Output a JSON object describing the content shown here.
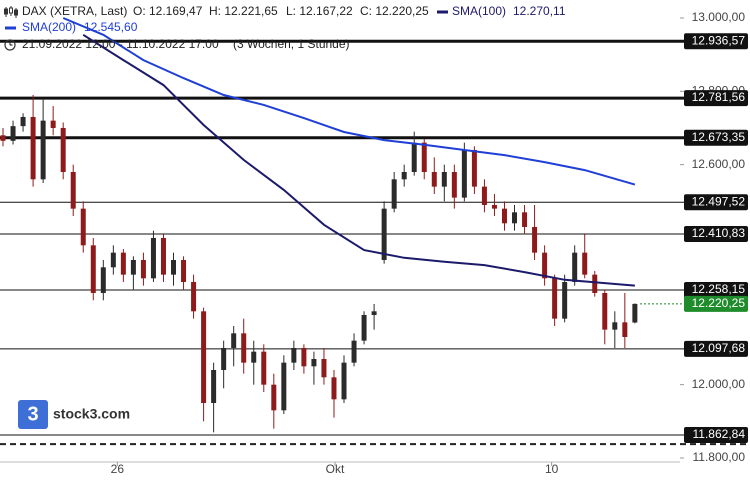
{
  "chart_data": {
    "type": "candlestick",
    "title": "DAX (XETRA, Last)",
    "ohlc_labels": [
      "O: 12.169,47",
      "H: 12.221,65",
      "L: 12.167,22",
      "C: 12.220,25"
    ],
    "period": "21.09.2022 12:00 - 11.10.2022 17:00",
    "interval": "(3 Wochen, 1 Stunde)",
    "open": [
      12680,
      12665,
      12705,
      12730,
      12560,
      12720,
      12700,
      12580,
      12480,
      12380,
      12250,
      12320,
      12360,
      12300,
      12340,
      12290,
      12400,
      12300,
      12340,
      12280,
      12200,
      11950,
      12040,
      12100,
      12140,
      12060,
      12090,
      12000,
      11930,
      12060,
      12100,
      12050,
      12070,
      12020,
      11960,
      12060,
      12120,
      12190,
      12340,
      12480,
      12560,
      12580,
      12660,
      12580,
      12540,
      12580,
      12510,
      12640,
      12540,
      12490,
      12480,
      12440,
      12470,
      12430,
      12360,
      12290,
      12180,
      12280,
      12360,
      12300,
      12250,
      12150,
      12170,
      12169.47
    ],
    "high": [
      12700,
      12720,
      12740,
      12790,
      12780,
      12760,
      12715,
      12600,
      12500,
      12400,
      12340,
      12380,
      12370,
      12350,
      12360,
      12420,
      12410,
      12360,
      12350,
      12300,
      12210,
      12060,
      12120,
      12160,
      12180,
      12120,
      12110,
      12030,
      12080,
      12120,
      12110,
      12090,
      12100,
      12040,
      12080,
      12140,
      12200,
      12220,
      12500,
      12580,
      12600,
      12690,
      12670,
      12620,
      12600,
      12600,
      12660,
      12650,
      12560,
      12520,
      12500,
      12490,
      12490,
      12490,
      12380,
      12300,
      12300,
      12380,
      12410,
      12310,
      12260,
      12200,
      12250,
      12221.65
    ],
    "low": [
      12650,
      12655,
      12690,
      12540,
      12550,
      12680,
      12560,
      12460,
      12360,
      12230,
      12230,
      12300,
      12280,
      12260,
      12270,
      12280,
      12280,
      12270,
      12260,
      12180,
      11900,
      11870,
      11990,
      12050,
      12030,
      12000,
      11980,
      11880,
      11920,
      12040,
      12030,
      12000,
      12000,
      11910,
      11950,
      12050,
      12110,
      12150,
      12330,
      12470,
      12540,
      12570,
      12560,
      12520,
      12500,
      12480,
      12500,
      12520,
      12470,
      12460,
      12420,
      12420,
      12410,
      12340,
      12270,
      12160,
      12170,
      12270,
      12290,
      12240,
      12110,
      12100,
      12100,
      12167.22
    ],
    "close": [
      12665,
      12705,
      12730,
      12560,
      12720,
      12700,
      12580,
      12480,
      12380,
      12250,
      12320,
      12360,
      12300,
      12340,
      12290,
      12400,
      12300,
      12340,
      12280,
      12200,
      11950,
      12040,
      12100,
      12140,
      12060,
      12090,
      12000,
      11930,
      12060,
      12100,
      12050,
      12070,
      12020,
      11960,
      12060,
      12120,
      12190,
      12200,
      12480,
      12560,
      12580,
      12660,
      12580,
      12540,
      12580,
      12510,
      12640,
      12540,
      12490,
      12480,
      12440,
      12470,
      12430,
      12360,
      12290,
      12180,
      12280,
      12360,
      12300,
      12250,
      12150,
      12170,
      12130,
      12220.25
    ],
    "up_color": "#2b2b2b",
    "down_color": "#8e1b1b",
    "series": [
      {
        "name": "SMA(100)",
        "color": "#1c1a6b",
        "last_label": "12.270,11",
        "x": [
          8,
          12,
          16,
          20,
          24,
          28,
          32,
          36,
          40,
          44,
          48,
          52,
          56,
          60,
          63
        ],
        "values": [
          12954,
          12885,
          12817,
          12708,
          12613,
          12531,
          12436,
          12367,
          12346,
          12335,
          12326,
          12307,
          12286,
          12277,
          12270.11
        ]
      },
      {
        "name": "SMA(200)",
        "color": "#1f3fd6",
        "last_label": "12.545,60",
        "x": [
          6,
          10,
          14,
          18,
          22,
          26,
          30,
          34,
          38,
          42,
          46,
          50,
          54,
          58,
          63
        ],
        "values": [
          13000,
          12954,
          12885,
          12836,
          12790,
          12763,
          12727,
          12689,
          12667,
          12654,
          12640,
          12626,
          12607,
          12585,
          12545.6
        ]
      }
    ],
    "levels": [
      {
        "value": 12936.57,
        "label": "12.936,57",
        "bold": true
      },
      {
        "value": 12781.56,
        "label": "12.781,56",
        "bold": true
      },
      {
        "value": 12673.35,
        "label": "12.673,35",
        "bold": true
      },
      {
        "value": 12497.52,
        "label": "12.497,52",
        "bold": false
      },
      {
        "value": 12410.83,
        "label": "12.410,83",
        "bold": false
      },
      {
        "value": 12258.15,
        "label": "12.258,15",
        "bold": false
      },
      {
        "value": 12097.68,
        "label": "12.097,68",
        "bold": false
      },
      {
        "value": 11862.84,
        "label": "11.862,84",
        "bold": false
      }
    ],
    "dashed_level": 11838,
    "last_price": {
      "value": 12220.25,
      "label": "12.220,25",
      "color": "#1e8c2a"
    },
    "ylim": [
      11740,
      13049
    ],
    "yticks": [
      {
        "value": 13000,
        "label": "13.000,00"
      },
      {
        "value": 12800,
        "label": "12.800,00"
      },
      {
        "value": 12600,
        "label": "12.600,00"
      },
      {
        "value": 12000,
        "label": "12.000,00"
      },
      {
        "value": 11800,
        "label": "11.800,00"
      }
    ],
    "xlim": [
      -0.3,
      67.5
    ],
    "xticks": [
      {
        "value": 11.4,
        "label": "26"
      },
      {
        "value": 33.1,
        "label": "Okt"
      },
      {
        "value": 54.7,
        "label": "10"
      }
    ]
  },
  "logo": {
    "icon": "3",
    "text": "stock3.com"
  }
}
